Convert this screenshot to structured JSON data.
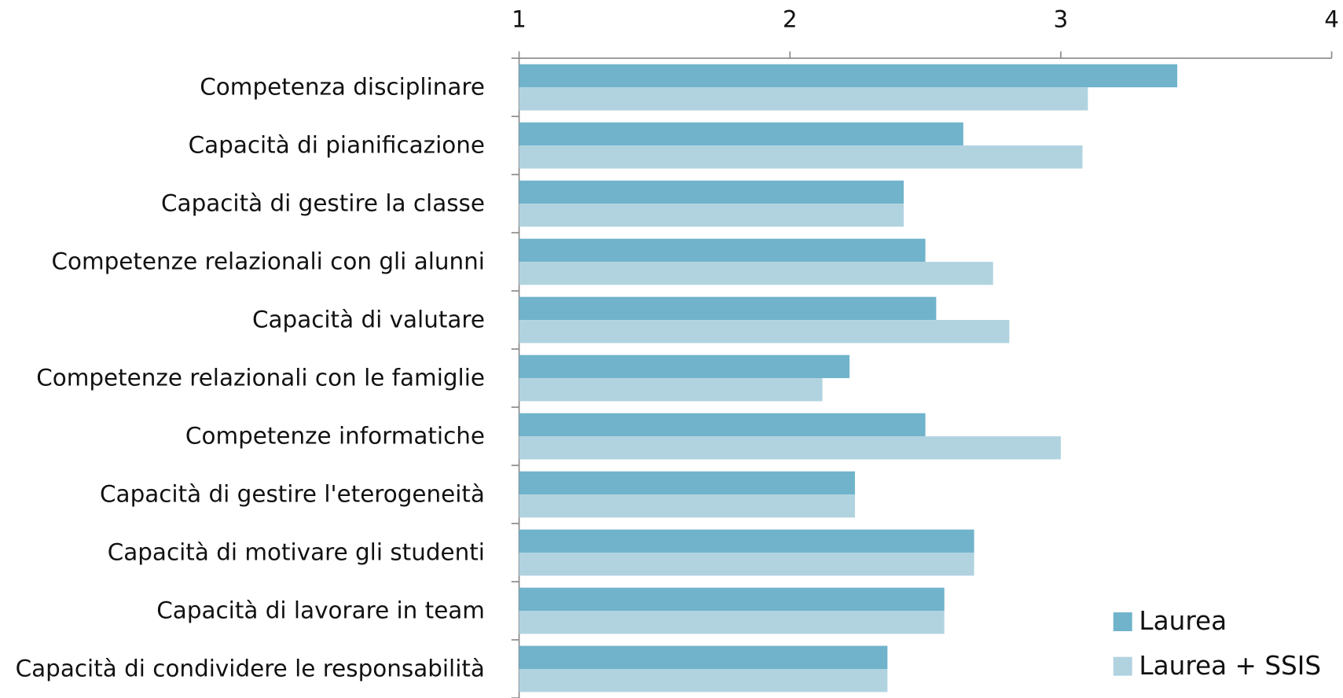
{
  "chart_data": {
    "type": "barh",
    "categories": [
      "Competenza disciplinare",
      "Capacità di pianificazione",
      "Capacità di gestire la classe",
      "Competenze relazionali con gli alunni",
      "Capacità di valutare",
      "Competenze relazionali con le famiglie",
      "Competenze informatiche",
      "Capacità di gestire l'eterogeneità",
      "Capacità di motivare gli studenti",
      "Capacità di lavorare in team",
      "Capacità di condividere le responsabilità"
    ],
    "series": [
      {
        "name": "Laurea",
        "color": "#70b3cb",
        "values": [
          3.43,
          2.64,
          2.42,
          2.5,
          2.54,
          2.22,
          2.5,
          2.24,
          2.68,
          2.57,
          2.36
        ]
      },
      {
        "name": "Laurea + SSIS",
        "color": "#b1d3e0",
        "values": [
          3.1,
          3.08,
          2.42,
          2.75,
          2.81,
          2.12,
          3.0,
          2.24,
          2.68,
          2.57,
          2.36
        ]
      }
    ],
    "xlim": [
      1,
      4
    ],
    "xticks": [
      1,
      2,
      3,
      4
    ],
    "legend": "lower right"
  }
}
